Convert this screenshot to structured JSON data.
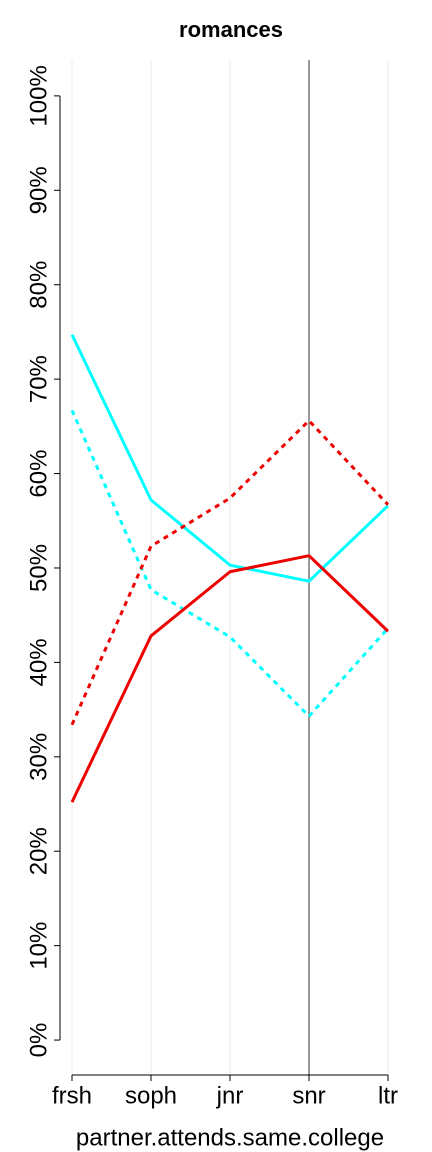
{
  "chart_data": {
    "type": "line",
    "title": "romances",
    "x_label": "partner.attends.same.college",
    "categories": [
      "frsh",
      "soph",
      "jnr",
      "snr",
      "ltr"
    ],
    "series": [
      {
        "color": "#00ffff",
        "dash": false,
        "values": [
          74.7,
          57.2,
          50.3,
          48.6,
          56.6
        ]
      },
      {
        "color": "#00ffff",
        "dash": true,
        "values": [
          66.7,
          47.7,
          42.7,
          34.3,
          43.6
        ]
      },
      {
        "color": "#ee0000",
        "dash": false,
        "values": [
          25.2,
          42.8,
          49.6,
          51.3,
          43.3
        ]
      },
      {
        "color": "#ee0000",
        "dash": true,
        "values": [
          33.4,
          52.3,
          57.4,
          65.6,
          56.7
        ]
      }
    ],
    "ylim": [
      -3.7,
      103.8
    ],
    "yticks": [
      {
        "value": 0,
        "label": "0%"
      },
      {
        "value": 10,
        "label": "10%"
      },
      {
        "value": 20,
        "label": "20%"
      },
      {
        "value": 30,
        "label": "30%"
      },
      {
        "value": 40,
        "label": "40%"
      },
      {
        "value": 50,
        "label": "50%"
      },
      {
        "value": 60,
        "label": "60%"
      },
      {
        "value": 70,
        "label": "70%"
      },
      {
        "value": 80,
        "label": "80%"
      },
      {
        "value": 90,
        "label": "90%"
      },
      {
        "value": 100,
        "label": "100%"
      }
    ],
    "x_grid": true,
    "highlight_category": 3
  }
}
